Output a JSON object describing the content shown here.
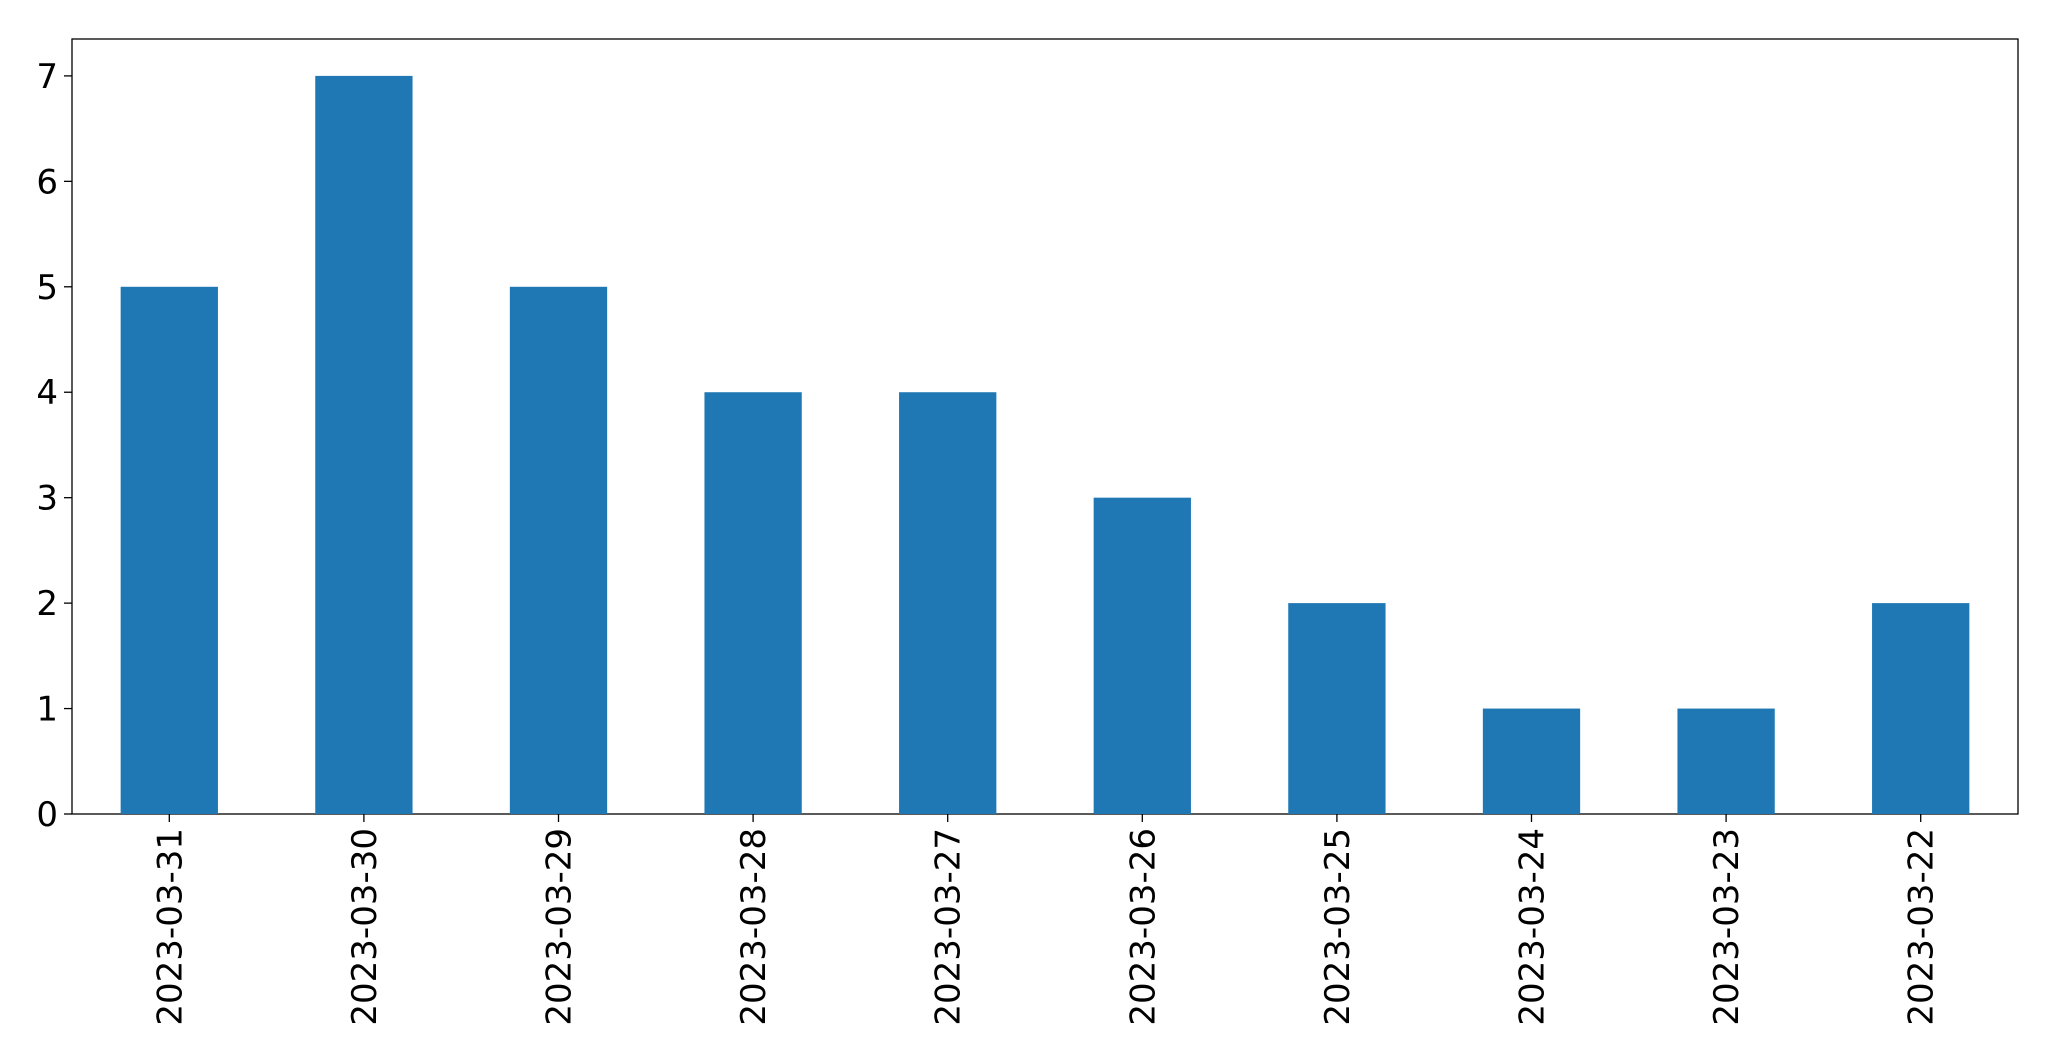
{
  "chart_data": {
    "type": "bar",
    "categories": [
      "2023-03-31",
      "2023-03-30",
      "2023-03-29",
      "2023-03-28",
      "2023-03-27",
      "2023-03-26",
      "2023-03-25",
      "2023-03-24",
      "2023-03-23",
      "2023-03-22"
    ],
    "values": [
      5,
      7,
      5,
      4,
      4,
      3,
      2,
      1,
      1,
      2
    ],
    "color": "#1f77b4",
    "ylim": [
      0,
      7.35
    ],
    "yticks": [
      0,
      1,
      2,
      3,
      4,
      5,
      6,
      7
    ],
    "grid": false
  }
}
